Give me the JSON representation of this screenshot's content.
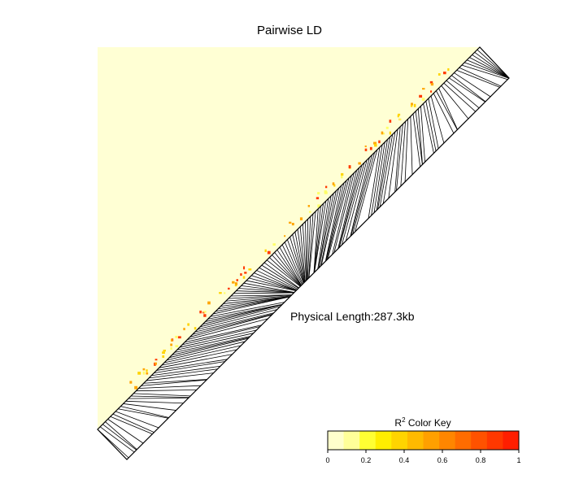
{
  "title": "Pairwise LD",
  "annotation": "Physical Length:287.3kb",
  "color_key": {
    "label_main": "R",
    "label_sup": "2",
    "label_rest": " Color Key",
    "ticks": [
      "0",
      "0.2",
      "0.4",
      "0.6",
      "0.8",
      "1"
    ],
    "colors": [
      "#ffffcc",
      "#ffff99",
      "#ffff33",
      "#ffee00",
      "#ffd400",
      "#ffba00",
      "#ffa000",
      "#ff8600",
      "#ff6c00",
      "#ff5200",
      "#ff3800",
      "#ff1e00"
    ]
  },
  "chart_data": {
    "type": "heatmap",
    "title": "Pairwise LD",
    "annotation": "Physical Length:287.3kb",
    "metric": "R2",
    "color_range": [
      0,
      1
    ],
    "color_key_ticks": [
      0,
      0.2,
      0.4,
      0.6,
      0.8,
      1
    ],
    "physical_length_kb": 287.3,
    "background_r2": 0.05,
    "high_ld_patches": [
      {
        "snp_band": "near diagonal, upper end",
        "r2": 0.8
      },
      {
        "snp_band": "near diagonal, mid",
        "r2": 0.55
      },
      {
        "snp_band": "near diagonal, lower end",
        "r2": 0.45
      }
    ]
  }
}
